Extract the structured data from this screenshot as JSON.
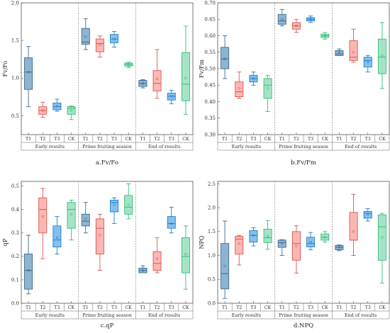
{
  "colors": {
    "T1": {
      "fill": "#8fb4d0",
      "stroke": "#3d6c8f"
    },
    "T2": {
      "fill": "#f9b8b4",
      "stroke": "#e0554f"
    },
    "T3": {
      "fill": "#84c0ec",
      "stroke": "#1f7fcf"
    },
    "CK": {
      "fill": "#a6e3c6",
      "stroke": "#2fbf7b"
    }
  },
  "treatments": [
    "T1",
    "T2",
    "T3",
    "CK"
  ],
  "groups": [
    "Early results",
    "Prime fruiting season",
    "End of results"
  ],
  "chart_data": [
    {
      "type": "box",
      "title": "a.Fv/Fo",
      "ylabel": "Fv/Fo",
      "ylim": [
        0.25,
        2.0
      ],
      "yticks": [
        0.5,
        1.0,
        1.5,
        2.0
      ],
      "ytick_labels": [
        "0.5",
        "1.0",
        "1.5",
        "2.0"
      ],
      "boxes": [
        {
          "group": "Early results",
          "t": "T1",
          "min": 0.62,
          "q1": 0.85,
          "med": 1.08,
          "q3": 1.27,
          "max": 1.42,
          "mean": 1.08
        },
        {
          "group": "Early results",
          "t": "T2",
          "min": 0.48,
          "q1": 0.52,
          "med": 0.57,
          "q3": 0.62,
          "max": 0.68,
          "mean": 0.57
        },
        {
          "group": "Early results",
          "t": "T3",
          "min": 0.56,
          "q1": 0.58,
          "med": 0.62,
          "q3": 0.67,
          "max": 0.72,
          "mean": 0.63
        },
        {
          "group": "Early results",
          "t": "CK",
          "min": 0.45,
          "q1": 0.52,
          "med": 0.6,
          "q3": 0.62,
          "max": 0.63,
          "mean": 0.57
        },
        {
          "group": "Prime fruiting season",
          "t": "T1",
          "min": 1.38,
          "q1": 1.45,
          "med": 1.48,
          "q3": 1.66,
          "max": 1.79,
          "mean": 1.55
        },
        {
          "group": "Prime fruiting season",
          "t": "T2",
          "min": 1.28,
          "q1": 1.35,
          "med": 1.46,
          "q3": 1.52,
          "max": 1.56,
          "mean": 1.44
        },
        {
          "group": "Prime fruiting season",
          "t": "T3",
          "min": 1.41,
          "q1": 1.47,
          "med": 1.52,
          "q3": 1.58,
          "max": 1.62,
          "mean": 1.52
        },
        {
          "group": "Prime fruiting season",
          "t": "CK",
          "min": 1.14,
          "q1": 1.16,
          "med": 1.18,
          "q3": 1.2,
          "max": 1.21,
          "mean": 1.18
        },
        {
          "group": "End of results",
          "t": "T1",
          "min": 0.87,
          "q1": 0.89,
          "med": 0.93,
          "q3": 0.97,
          "max": 0.98,
          "mean": 0.93
        },
        {
          "group": "End of results",
          "t": "T2",
          "min": 0.73,
          "q1": 0.83,
          "med": 0.93,
          "q3": 1.1,
          "max": 1.38,
          "mean": 0.99
        },
        {
          "group": "End of results",
          "t": "T3",
          "min": 0.66,
          "q1": 0.71,
          "med": 0.76,
          "q3": 0.8,
          "max": 0.84,
          "mean": 0.76
        },
        {
          "group": "End of results",
          "t": "CK",
          "min": 0.52,
          "q1": 0.7,
          "med": 0.92,
          "q3": 1.34,
          "max": 1.69,
          "mean": 1.0
        }
      ]
    },
    {
      "type": "box",
      "title": "b.Fv/Fm",
      "ylabel": "Fv/Fm",
      "ylim": [
        0.3,
        0.7
      ],
      "yticks": [
        0.3,
        0.35,
        0.4,
        0.45,
        0.5,
        0.55,
        0.6,
        0.65,
        0.7
      ],
      "ytick_labels": [
        "0.30",
        "0.35",
        "0.40",
        "0.45",
        "0.50",
        "0.55",
        "0.60",
        "0.65",
        "0.70"
      ],
      "boxes": [
        {
          "group": "Early results",
          "t": "T1",
          "min": 0.47,
          "q1": 0.5,
          "med": 0.53,
          "q3": 0.565,
          "max": 0.6,
          "mean": 0.53
        },
        {
          "group": "Early results",
          "t": "T2",
          "min": 0.41,
          "q1": 0.415,
          "med": 0.43,
          "q3": 0.46,
          "max": 0.49,
          "mean": 0.44
        },
        {
          "group": "Early results",
          "t": "T3",
          "min": 0.45,
          "q1": 0.46,
          "med": 0.47,
          "q3": 0.48,
          "max": 0.49,
          "mean": 0.47
        },
        {
          "group": "Early results",
          "t": "CK",
          "min": 0.37,
          "q1": 0.41,
          "med": 0.45,
          "q3": 0.47,
          "max": 0.48,
          "mean": 0.44
        },
        {
          "group": "Prime fruiting season",
          "t": "T1",
          "min": 0.63,
          "q1": 0.635,
          "med": 0.645,
          "q3": 0.665,
          "max": 0.68,
          "mean": 0.65
        },
        {
          "group": "Prime fruiting season",
          "t": "T2",
          "min": 0.61,
          "q1": 0.62,
          "med": 0.63,
          "q3": 0.64,
          "max": 0.65,
          "mean": 0.63
        },
        {
          "group": "Prime fruiting season",
          "t": "T3",
          "min": 0.64,
          "q1": 0.645,
          "med": 0.65,
          "q3": 0.655,
          "max": 0.66,
          "mean": 0.65
        },
        {
          "group": "Prime fruiting season",
          "t": "CK",
          "min": 0.59,
          "q1": 0.595,
          "med": 0.6,
          "q3": 0.605,
          "max": 0.61,
          "mean": 0.6
        },
        {
          "group": "End of results",
          "t": "T1",
          "min": 0.54,
          "q1": 0.54,
          "med": 0.545,
          "q3": 0.555,
          "max": 0.56,
          "mean": 0.55
        },
        {
          "group": "End of results",
          "t": "T2",
          "min": 0.52,
          "q1": 0.525,
          "med": 0.535,
          "q3": 0.585,
          "max": 0.62,
          "mean": 0.55
        },
        {
          "group": "End of results",
          "t": "T3",
          "min": 0.49,
          "q1": 0.505,
          "med": 0.525,
          "q3": 0.535,
          "max": 0.54,
          "mean": 0.52
        },
        {
          "group": "End of results",
          "t": "CK",
          "min": 0.44,
          "q1": 0.485,
          "med": 0.535,
          "q3": 0.59,
          "max": 0.64,
          "mean": 0.54
        }
      ]
    },
    {
      "type": "box",
      "title": "c.qP",
      "ylabel": "qP",
      "ylim": [
        0.0,
        0.52
      ],
      "yticks": [
        0.0,
        0.1,
        0.2,
        0.3,
        0.4,
        0.5
      ],
      "ytick_labels": [
        "0.0",
        "0.1",
        "0.2",
        "0.3",
        "0.4",
        "0.5"
      ],
      "boxes": [
        {
          "group": "Early results",
          "t": "T1",
          "min": 0.04,
          "q1": 0.06,
          "med": 0.14,
          "q3": 0.21,
          "max": 0.29,
          "mean": 0.14
        },
        {
          "group": "Early results",
          "t": "T2",
          "min": 0.19,
          "q1": 0.3,
          "med": 0.4,
          "q3": 0.45,
          "max": 0.49,
          "mean": 0.37
        },
        {
          "group": "Early results",
          "t": "T3",
          "min": 0.21,
          "q1": 0.24,
          "med": 0.27,
          "q3": 0.33,
          "max": 0.37,
          "mean": 0.28
        },
        {
          "group": "Early results",
          "t": "CK",
          "min": 0.27,
          "q1": 0.32,
          "med": 0.4,
          "q3": 0.43,
          "max": 0.44,
          "mean": 0.38
        },
        {
          "group": "Prime fruiting season",
          "t": "T1",
          "min": 0.3,
          "q1": 0.33,
          "med": 0.35,
          "q3": 0.38,
          "max": 0.43,
          "mean": 0.36
        },
        {
          "group": "Prime fruiting season",
          "t": "T2",
          "min": 0.14,
          "q1": 0.21,
          "med": 0.32,
          "q3": 0.36,
          "max": 0.38,
          "mean": 0.29
        },
        {
          "group": "Prime fruiting season",
          "t": "T3",
          "min": 0.34,
          "q1": 0.39,
          "med": 0.43,
          "q3": 0.44,
          "max": 0.45,
          "mean": 0.42
        },
        {
          "group": "Prime fruiting season",
          "t": "CK",
          "min": 0.36,
          "q1": 0.38,
          "med": 0.41,
          "q3": 0.46,
          "max": 0.51,
          "mean": 0.42
        },
        {
          "group": "End of results",
          "t": "T1",
          "min": 0.13,
          "q1": 0.13,
          "med": 0.14,
          "q3": 0.15,
          "max": 0.16,
          "mean": 0.14
        },
        {
          "group": "End of results",
          "t": "T2",
          "min": 0.13,
          "q1": 0.14,
          "med": 0.17,
          "q3": 0.22,
          "max": 0.28,
          "mean": 0.19
        },
        {
          "group": "End of results",
          "t": "T3",
          "min": 0.3,
          "q1": 0.32,
          "med": 0.34,
          "q3": 0.37,
          "max": 0.41,
          "mean": 0.34
        },
        {
          "group": "End of results",
          "t": "CK",
          "min": 0.06,
          "q1": 0.13,
          "med": 0.2,
          "q3": 0.28,
          "max": 0.33,
          "mean": 0.21
        }
      ]
    },
    {
      "type": "box",
      "title": "d.NPQ",
      "ylabel": "NPQ",
      "ylim": [
        0.0,
        2.55
      ],
      "yticks": [
        0.0,
        0.5,
        1.0,
        1.5,
        2.0,
        2.5
      ],
      "ytick_labels": [
        "0.0",
        "0.5",
        "1.0",
        "1.5",
        "2.0",
        "2.5"
      ],
      "boxes": [
        {
          "group": "Early results",
          "t": "T1",
          "min": 0.1,
          "q1": 0.3,
          "med": 0.62,
          "q3": 1.25,
          "max": 1.72,
          "mean": 0.78
        },
        {
          "group": "Early results",
          "t": "T2",
          "min": 0.8,
          "q1": 1.03,
          "med": 1.34,
          "q3": 1.4,
          "max": 1.42,
          "mean": 1.25
        },
        {
          "group": "Early results",
          "t": "T3",
          "min": 1.2,
          "q1": 1.28,
          "med": 1.42,
          "q3": 1.52,
          "max": 1.58,
          "mean": 1.42
        },
        {
          "group": "Early results",
          "t": "CK",
          "min": 1.13,
          "q1": 1.27,
          "med": 1.37,
          "q3": 1.55,
          "max": 1.73,
          "mean": 1.4
        },
        {
          "group": "Prime fruiting season",
          "t": "T1",
          "min": 1.0,
          "q1": 1.17,
          "med": 1.27,
          "q3": 1.32,
          "max": 1.33,
          "mean": 1.25
        },
        {
          "group": "Prime fruiting season",
          "t": "T2",
          "min": 0.63,
          "q1": 0.9,
          "med": 1.25,
          "q3": 1.5,
          "max": 1.62,
          "mean": 1.2
        },
        {
          "group": "Prime fruiting season",
          "t": "T3",
          "min": 1.12,
          "q1": 1.18,
          "med": 1.25,
          "q3": 1.38,
          "max": 1.48,
          "mean": 1.28
        },
        {
          "group": "Prime fruiting season",
          "t": "CK",
          "min": 1.28,
          "q1": 1.32,
          "med": 1.38,
          "q3": 1.45,
          "max": 1.5,
          "mean": 1.38
        },
        {
          "group": "End of results",
          "t": "T1",
          "min": 1.1,
          "q1": 1.12,
          "med": 1.17,
          "q3": 1.21,
          "max": 1.22,
          "mean": 1.17
        },
        {
          "group": "End of results",
          "t": "T2",
          "min": 1.0,
          "q1": 1.32,
          "med": 1.32,
          "q3": 1.9,
          "max": 2.28,
          "mean": 1.5
        },
        {
          "group": "End of results",
          "t": "T3",
          "min": 1.72,
          "q1": 1.78,
          "med": 1.88,
          "q3": 1.92,
          "max": 1.98,
          "mean": 1.86
        },
        {
          "group": "End of results",
          "t": "CK",
          "min": 0.42,
          "q1": 0.9,
          "med": 1.6,
          "q3": 1.85,
          "max": 1.88,
          "mean": 1.38
        }
      ]
    }
  ]
}
